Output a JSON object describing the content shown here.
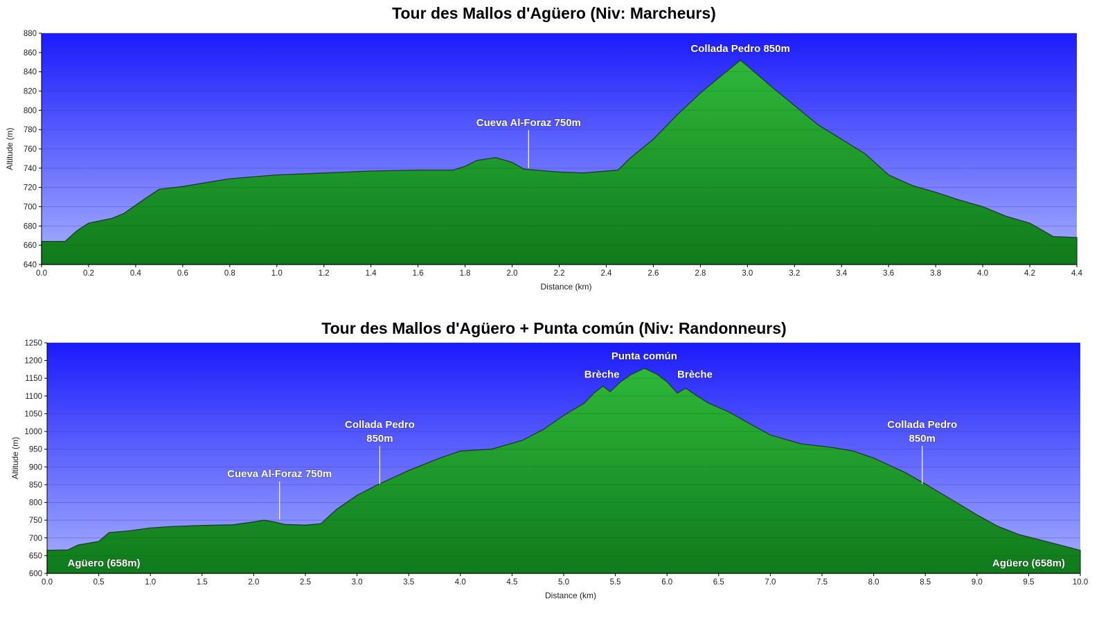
{
  "chart_data": [
    {
      "type": "area",
      "title": "Tour des Mallos d'Agüero (Niv: Marcheurs)",
      "xlabel": "Distance   (km)",
      "ylabel": "Altitude (m)",
      "xlim": [
        0,
        4.4
      ],
      "ylim": [
        640,
        880
      ],
      "x_ticks": [
        0.0,
        0.2,
        0.4,
        0.6,
        0.8,
        1.0,
        1.2,
        1.4,
        1.6,
        1.8,
        2.0,
        2.2,
        2.4,
        2.6,
        2.8,
        3.0,
        3.2,
        3.4,
        3.6,
        3.8,
        4.0,
        4.2,
        4.4
      ],
      "x_tick_labels": [
        "0.0",
        "0.2",
        "0.4",
        "0.6",
        "0.8",
        "1.0",
        "1.2",
        "1.4",
        "1.6",
        "1.8",
        "2.0",
        "2.2",
        "2.4",
        "2.6",
        "2.8",
        "3.0",
        "3.2",
        "3.4",
        "3.6",
        "3.8",
        "4.0",
        "4.2",
        "4.4"
      ],
      "y_ticks": [
        640,
        660,
        680,
        700,
        720,
        740,
        760,
        780,
        800,
        820,
        840,
        860,
        880
      ],
      "grid": true,
      "x": [
        0.0,
        0.1,
        0.15,
        0.2,
        0.3,
        0.35,
        0.45,
        0.5,
        0.6,
        0.7,
        0.8,
        0.9,
        1.0,
        1.2,
        1.4,
        1.6,
        1.75,
        1.8,
        1.85,
        1.93,
        2.0,
        2.05,
        2.1,
        2.2,
        2.3,
        2.45,
        2.5,
        2.6,
        2.7,
        2.8,
        2.9,
        2.97,
        3.0,
        3.1,
        3.2,
        3.3,
        3.4,
        3.5,
        3.6,
        3.7,
        3.8,
        3.9,
        4.0,
        4.1,
        4.2,
        4.3,
        4.4
      ],
      "values": [
        664,
        664,
        675,
        683,
        688,
        693,
        710,
        718,
        721,
        725,
        729,
        731,
        733,
        735,
        737,
        738,
        738,
        742,
        748,
        751,
        746,
        739,
        738,
        736,
        735,
        738,
        750,
        770,
        795,
        818,
        838,
        852,
        846,
        825,
        805,
        785,
        770,
        755,
        733,
        722,
        715,
        707,
        700,
        690,
        683,
        669,
        668
      ],
      "fill_top_color": "#2fb83a",
      "fill_bottom_color": "#0f7a1c",
      "bg_top_color": "#1a1aff",
      "bg_bottom_color": "#a8b2ff",
      "annotations": [
        {
          "lines": [
            "Cueva Al-Foraz 750m"
          ],
          "x": 2.07,
          "y": 740,
          "pointer": true
        },
        {
          "lines": [
            "Collada Pedro 850m"
          ],
          "x": 2.97,
          "y": 852,
          "pointer": false
        }
      ]
    },
    {
      "type": "area",
      "title": "Tour des Mallos d'Agüero + Punta común (Niv: Randonneurs)",
      "xlabel": "Distance   (km)",
      "ylabel": "Altitude (m)",
      "xlim": [
        0,
        10.0
      ],
      "ylim": [
        600,
        1250
      ],
      "x_ticks": [
        0.0,
        0.5,
        1.0,
        1.5,
        2.0,
        2.5,
        3.0,
        3.5,
        4.0,
        4.5,
        5.0,
        5.5,
        6.0,
        6.5,
        7.0,
        7.5,
        8.0,
        8.5,
        9.0,
        9.5,
        10.0
      ],
      "x_tick_labels": [
        "0.0",
        "0.5",
        "1.0",
        "1.5",
        "2.0",
        "2.5",
        "3.0",
        "3.5",
        "4.0",
        "4.5",
        "5.0",
        "5.5",
        "6.0",
        "6.5",
        "7.0",
        "7.5",
        "8.0",
        "8.5",
        "9.0",
        "9.5",
        "10.0"
      ],
      "y_ticks": [
        600,
        650,
        700,
        750,
        800,
        850,
        900,
        950,
        1000,
        1050,
        1100,
        1150,
        1200,
        1250
      ],
      "grid": true,
      "x": [
        0.0,
        0.2,
        0.3,
        0.5,
        0.6,
        0.8,
        1.0,
        1.2,
        1.5,
        1.8,
        2.0,
        2.1,
        2.2,
        2.3,
        2.5,
        2.65,
        2.8,
        3.0,
        3.2,
        3.5,
        3.8,
        4.0,
        4.3,
        4.6,
        4.8,
        5.0,
        5.2,
        5.3,
        5.38,
        5.45,
        5.55,
        5.65,
        5.78,
        5.9,
        6.0,
        6.1,
        6.18,
        6.25,
        6.4,
        6.6,
        6.8,
        7.0,
        7.3,
        7.6,
        7.8,
        8.0,
        8.3,
        8.5,
        8.8,
        9.0,
        9.2,
        9.4,
        9.6,
        9.8,
        10.0
      ],
      "values": [
        665,
        666,
        680,
        690,
        715,
        720,
        728,
        732,
        735,
        737,
        745,
        750,
        745,
        738,
        736,
        740,
        780,
        820,
        850,
        890,
        925,
        945,
        950,
        975,
        1005,
        1045,
        1080,
        1110,
        1128,
        1112,
        1140,
        1160,
        1178,
        1162,
        1140,
        1108,
        1122,
        1108,
        1080,
        1055,
        1022,
        990,
        965,
        955,
        945,
        925,
        885,
        852,
        800,
        765,
        733,
        710,
        695,
        680,
        665
      ],
      "fill_top_color": "#2fb83a",
      "fill_bottom_color": "#0f7a1c",
      "bg_top_color": "#1a1aff",
      "bg_bottom_color": "#a8b2ff",
      "annotations": [
        {
          "lines": [
            "Agüero (658m)"
          ],
          "x": 0.55,
          "y": 620,
          "pointer": false,
          "anchor": "middle"
        },
        {
          "lines": [
            "Cueva Al-Foraz 750m"
          ],
          "x": 2.25,
          "y": 752,
          "pointer": true
        },
        {
          "lines": [
            "Collada Pedro",
            "850m"
          ],
          "x": 3.22,
          "y": 852,
          "pointer": true
        },
        {
          "lines": [
            "Brèche"
          ],
          "x": 5.37,
          "y": 1128,
          "pointer": false
        },
        {
          "lines": [
            "Punta común"
          ],
          "x": 5.78,
          "y": 1180,
          "pointer": false
        },
        {
          "lines": [
            "Brèche"
          ],
          "x": 6.27,
          "y": 1128,
          "pointer": false
        },
        {
          "lines": [
            "Collada Pedro",
            "850m"
          ],
          "x": 8.47,
          "y": 852,
          "pointer": true
        },
        {
          "lines": [
            "Agüero (658m)"
          ],
          "x": 9.5,
          "y": 620,
          "pointer": false,
          "anchor": "middle"
        }
      ]
    }
  ]
}
